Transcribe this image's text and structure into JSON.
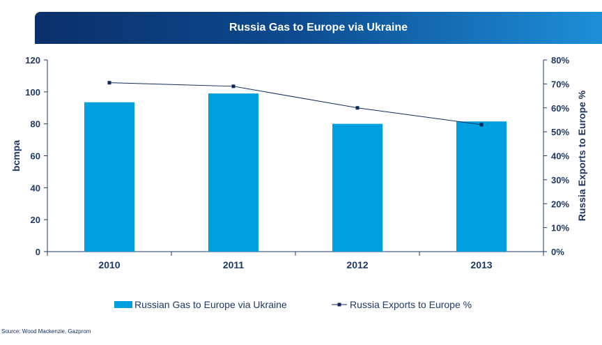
{
  "title": "Russia Gas to Europe via Ukraine",
  "source": "Source: Wood Mackenzie, Gazprom",
  "colors": {
    "bar": "#00a0e0",
    "line": "#0f2a5a",
    "axis": "#1f3864",
    "text": "#1f3864"
  },
  "chart_data": {
    "type": "bar",
    "title": "Russia Gas to Europe via Ukraine",
    "categories": [
      "2010",
      "2011",
      "2012",
      "2013"
    ],
    "series": [
      {
        "name": "Russian Gas to Europe via Ukraine",
        "type": "bar",
        "axis": "left",
        "values": [
          93.5,
          99,
          80,
          81.5
        ]
      },
      {
        "name": "Russia Exports to Europe %",
        "type": "line",
        "axis": "right",
        "values": [
          70.5,
          69,
          60,
          53
        ]
      }
    ],
    "ylabel": "bcmpa",
    "y2label": "Russia Exports to Europe %",
    "ylim": [
      0,
      120
    ],
    "y2lim": [
      0,
      80
    ],
    "yticks": [
      "0",
      "20",
      "40",
      "60",
      "80",
      "100",
      "120"
    ],
    "y2ticks": [
      "0%",
      "10%",
      "20%",
      "30%",
      "40%",
      "50%",
      "60%",
      "70%",
      "80%"
    ],
    "legend": "bottom",
    "grid": false
  }
}
